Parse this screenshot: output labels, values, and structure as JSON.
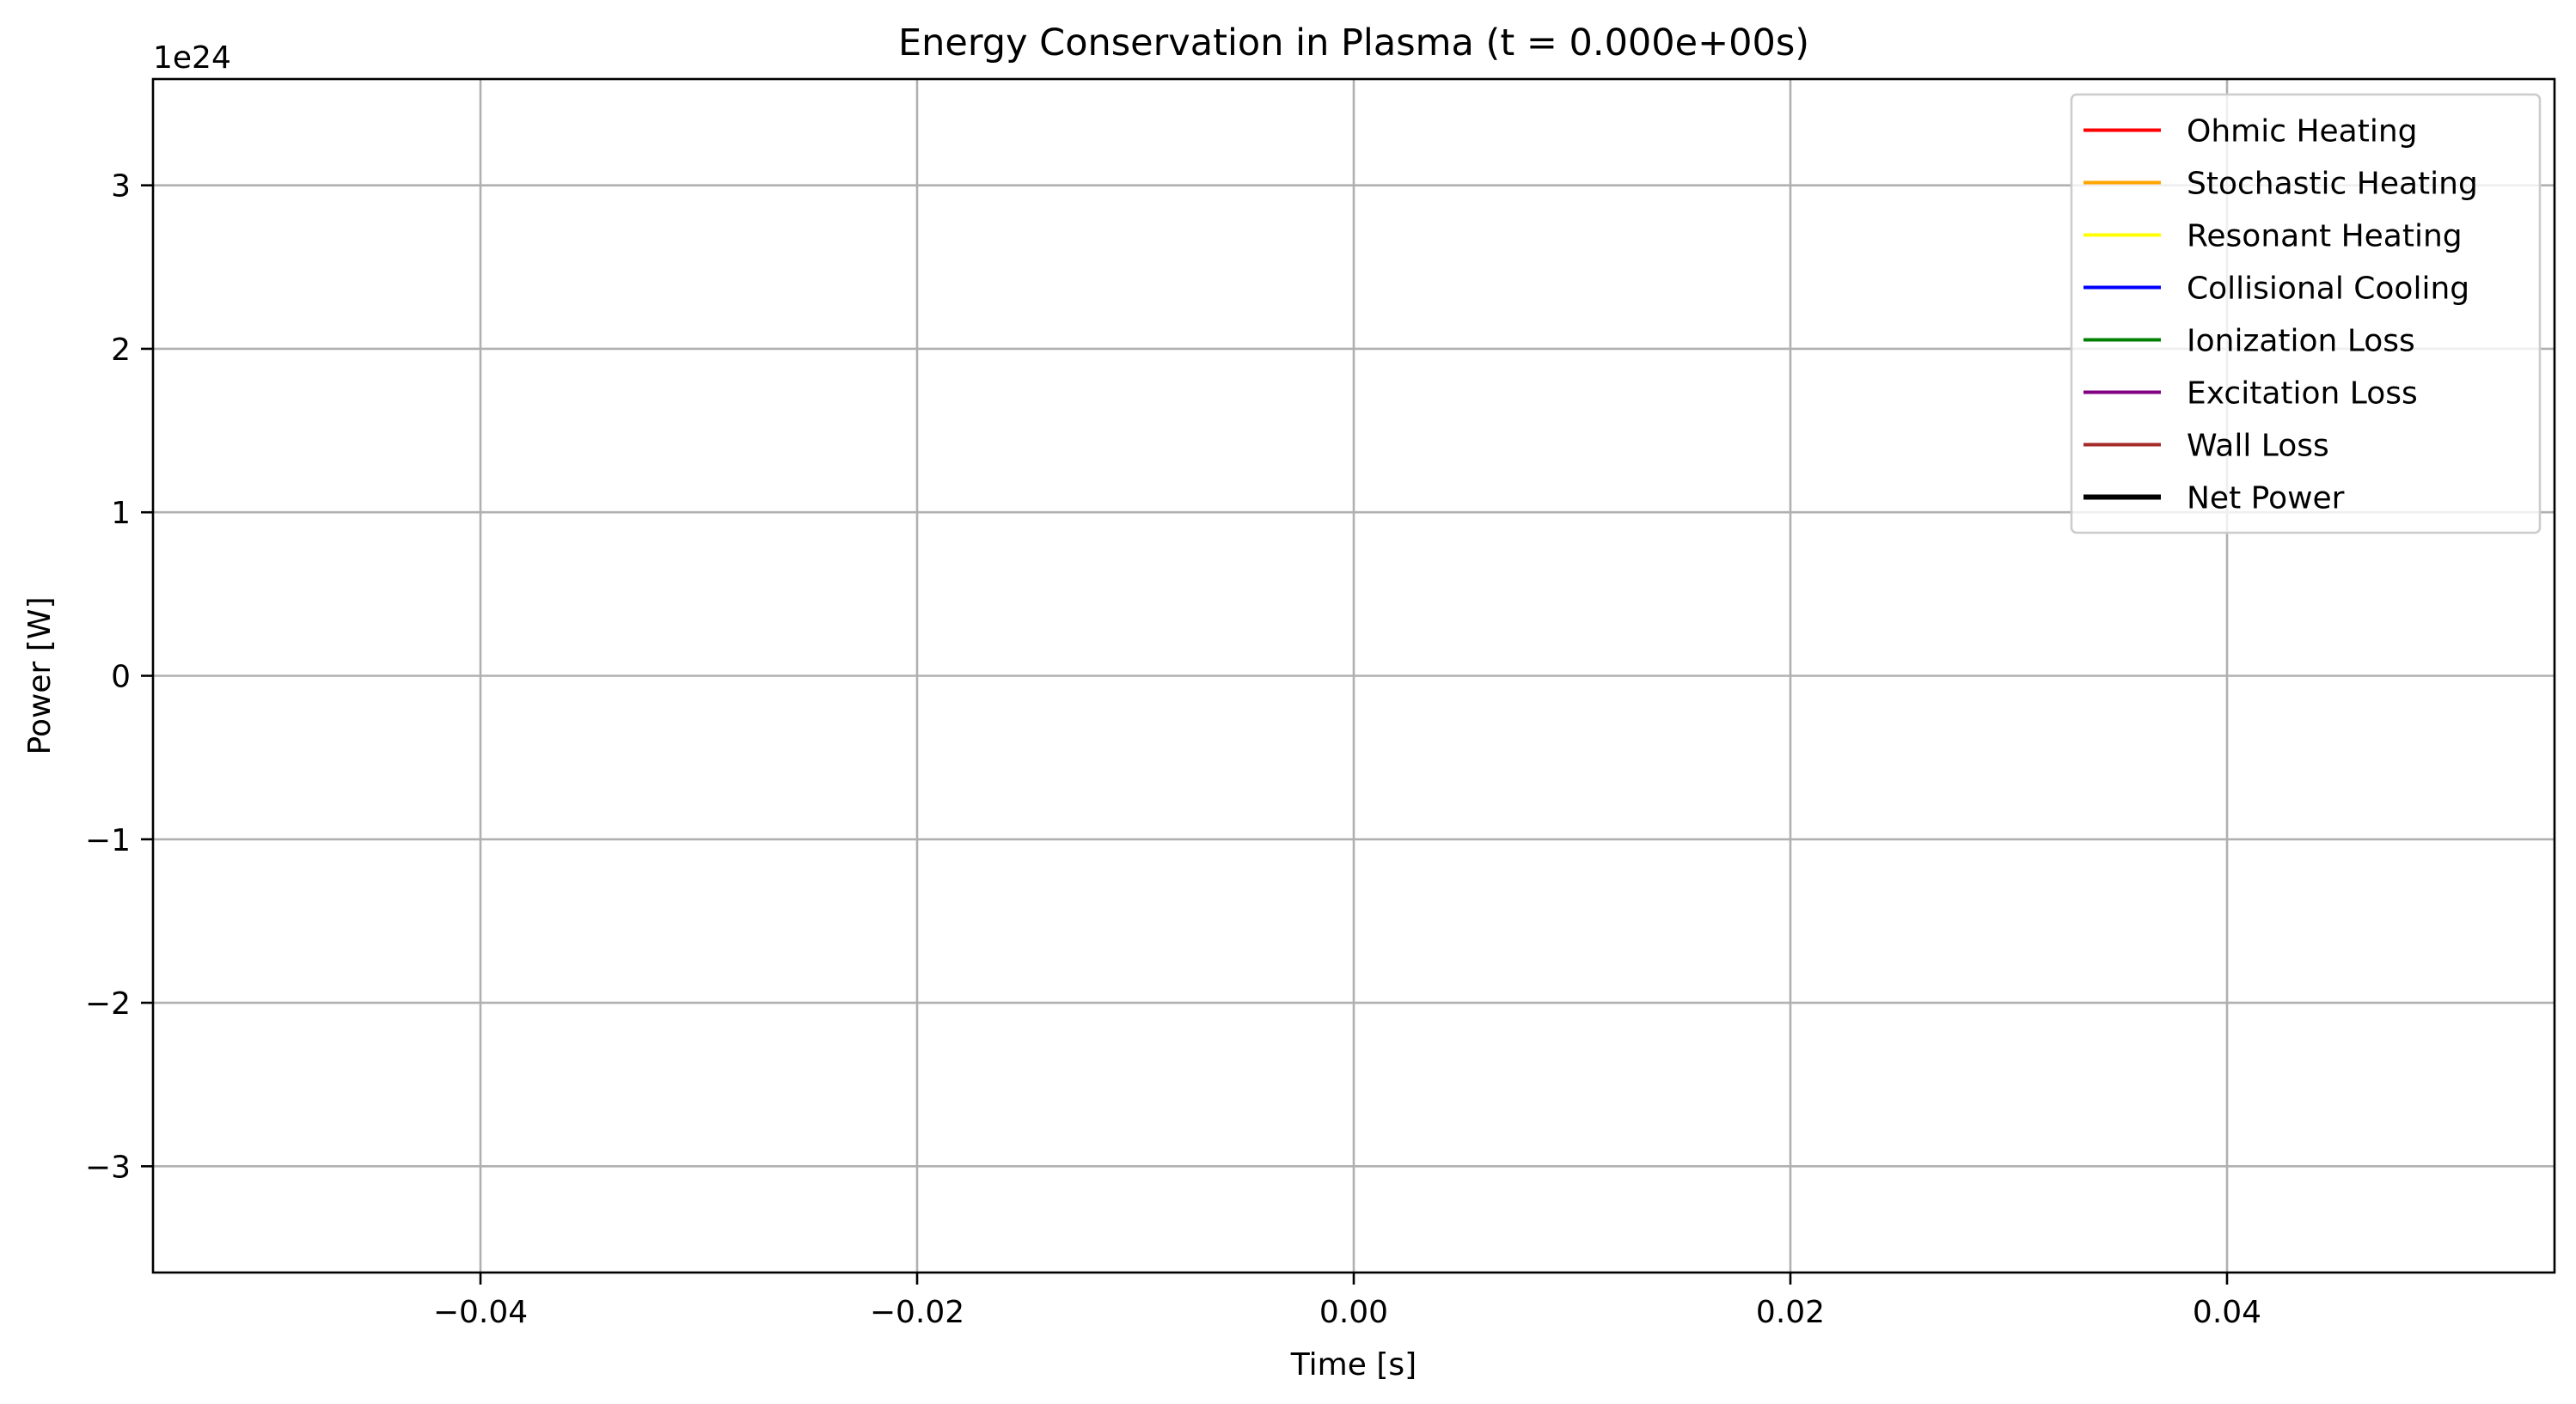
{
  "chart_data": {
    "type": "line",
    "title": "Energy Conservation in Plasma (t = 0.000e+00s)",
    "xlabel": "Time [s]",
    "ylabel": "Power [W]",
    "y_offset_label": "1e24",
    "xlim": [
      -0.055,
      0.055
    ],
    "ylim": [
      -3.65,
      3.65
    ],
    "x_ticks": [
      -0.04,
      -0.02,
      0.0,
      0.02,
      0.04
    ],
    "x_tick_labels": [
      "−0.04",
      "−0.02",
      "0.00",
      "0.02",
      "0.04"
    ],
    "y_ticks": [
      -3,
      -2,
      -1,
      0,
      1,
      2,
      3
    ],
    "y_tick_labels": [
      "−3",
      "−2",
      "−1",
      "0",
      "1",
      "2",
      "3"
    ],
    "grid": true,
    "legend_position": "top-right",
    "series": [
      {
        "name": "Ohmic Heating",
        "color": "#ff0000",
        "x": [],
        "y": []
      },
      {
        "name": "Stochastic Heating",
        "color": "#ffa500",
        "x": [],
        "y": []
      },
      {
        "name": "Resonant Heating",
        "color": "#ffff00",
        "x": [],
        "y": []
      },
      {
        "name": "Collisional Cooling",
        "color": "#0000ff",
        "x": [],
        "y": []
      },
      {
        "name": "Ionization Loss",
        "color": "#008000",
        "x": [],
        "y": []
      },
      {
        "name": "Excitation Loss",
        "color": "#800080",
        "x": [],
        "y": []
      },
      {
        "name": "Wall Loss",
        "color": "#a52a2a",
        "x": [],
        "y": []
      },
      {
        "name": "Net Power",
        "color": "#000000",
        "x": [],
        "y": []
      }
    ]
  }
}
